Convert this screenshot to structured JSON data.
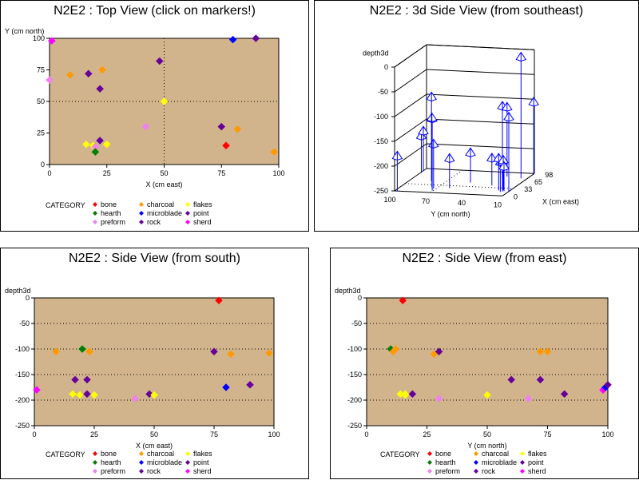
{
  "plot_bg": "#d2b48c",
  "legend": {
    "title": "CATEGORY",
    "items": [
      {
        "label": "bone",
        "color": "#ff0000"
      },
      {
        "label": "charcoal",
        "color": "#ff9900"
      },
      {
        "label": "flakes",
        "color": "#ffff00"
      },
      {
        "label": "hearth",
        "color": "#008000"
      },
      {
        "label": "microblade",
        "color": "#0000ff"
      },
      {
        "label": "point",
        "color": "#660099"
      },
      {
        "label": "preform",
        "color": "#ee82ee"
      },
      {
        "label": "rock",
        "color": "#660099"
      },
      {
        "label": "sherd",
        "color": "#ff00ff"
      }
    ]
  },
  "panels": {
    "top": {
      "title": "N2E2 : Top View (click on markers!)"
    },
    "side3d": {
      "title": "N2E2 : 3d Side View (from southeast)"
    },
    "south": {
      "title": "N2E2 : Side View (from south)"
    },
    "east": {
      "title": "N2E2 : Side View (from east)"
    }
  },
  "chart_data": [
    {
      "type": "scatter",
      "title": "N2E2 : Top View (click on markers!)",
      "xlabel": "X (cm east)",
      "ylabel": "Y (cm north)",
      "xlim": [
        0,
        100
      ],
      "ylim": [
        0,
        100
      ],
      "xticks": [
        0,
        25,
        50,
        75,
        100
      ],
      "yticks": [
        0,
        25,
        50,
        75,
        100
      ],
      "reflines": {
        "x": [
          50
        ],
        "y": [
          50
        ]
      },
      "points": [
        {
          "x": 1,
          "y": 98,
          "c": "sherd"
        },
        {
          "x": 0,
          "y": 67,
          "c": "preform"
        },
        {
          "x": 9,
          "y": 71,
          "c": "charcoal"
        },
        {
          "x": 17,
          "y": 72,
          "c": "rock"
        },
        {
          "x": 23,
          "y": 75,
          "c": "charcoal"
        },
        {
          "x": 22,
          "y": 60,
          "c": "point"
        },
        {
          "x": 48,
          "y": 82,
          "c": "rock"
        },
        {
          "x": 50,
          "y": 50,
          "c": "flakes"
        },
        {
          "x": 80,
          "y": 99,
          "c": "microblade"
        },
        {
          "x": 90,
          "y": 100,
          "c": "rock"
        },
        {
          "x": 42,
          "y": 30,
          "c": "preform"
        },
        {
          "x": 75,
          "y": 30,
          "c": "rock"
        },
        {
          "x": 82,
          "y": 28,
          "c": "charcoal"
        },
        {
          "x": 77,
          "y": 15,
          "c": "bone"
        },
        {
          "x": 98,
          "y": 10,
          "c": "charcoal"
        },
        {
          "x": 16,
          "y": 16,
          "c": "flakes"
        },
        {
          "x": 19,
          "y": 15,
          "c": "flakes"
        },
        {
          "x": 22,
          "y": 19,
          "c": "point"
        },
        {
          "x": 25,
          "y": 16,
          "c": "flakes"
        },
        {
          "x": 20,
          "y": 14,
          "c": "preform"
        },
        {
          "x": 20,
          "y": 10,
          "c": "hearth"
        }
      ]
    },
    {
      "type": "scatter",
      "title": "N2E2 : 3d Side View (from southeast)",
      "zlabel": "depth3d",
      "ylabel": "Y (cm north)",
      "xlabel": "X (cm east)",
      "zticks": [
        "0",
        "-50",
        "-100",
        "-150",
        "-200",
        "-250"
      ],
      "yticks": [
        "100",
        "70",
        "40",
        "10"
      ],
      "xticks": [
        "0",
        "33",
        "65",
        "98"
      ],
      "points": [
        {
          "x": 1,
          "y": 98,
          "z": -180
        },
        {
          "x": 17,
          "y": 72,
          "z": -160
        },
        {
          "x": 9,
          "y": 71,
          "z": -105
        },
        {
          "x": 23,
          "y": 75,
          "z": -110
        },
        {
          "x": 22,
          "y": 60,
          "z": -190
        },
        {
          "x": 42,
          "y": 30,
          "z": -195
        },
        {
          "x": 48,
          "y": 82,
          "z": -80
        },
        {
          "x": 50,
          "y": 50,
          "z": -190
        },
        {
          "x": 80,
          "y": 99,
          "z": -175
        },
        {
          "x": 90,
          "y": 100,
          "z": -170
        },
        {
          "x": 75,
          "y": 30,
          "z": -105
        },
        {
          "x": 82,
          "y": 28,
          "z": -110
        },
        {
          "x": 77,
          "y": 15,
          "z": -5
        },
        {
          "x": 98,
          "y": 10,
          "z": -105
        },
        {
          "x": 16,
          "y": 16,
          "z": -190
        },
        {
          "x": 19,
          "y": 15,
          "z": -190
        },
        {
          "x": 22,
          "y": 19,
          "z": -185
        },
        {
          "x": 25,
          "y": 16,
          "z": -190
        },
        {
          "x": 20,
          "y": 14,
          "z": -200
        },
        {
          "x": 20,
          "y": 10,
          "z": -100
        }
      ]
    },
    {
      "type": "scatter",
      "title": "N2E2 : Side View (from south)",
      "xlabel": "X (cm east)",
      "ylabel": "depth3d",
      "xlim": [
        0,
        100
      ],
      "ylim": [
        -250,
        0
      ],
      "xticks": [
        0,
        25,
        50,
        75,
        100
      ],
      "yticks": [
        0,
        -50,
        -100,
        -150,
        -200,
        -250
      ],
      "points": [
        {
          "x": 77,
          "y": -5,
          "c": "bone"
        },
        {
          "x": 20,
          "y": -100,
          "c": "hearth"
        },
        {
          "x": 9,
          "y": -105,
          "c": "charcoal"
        },
        {
          "x": 23,
          "y": -105,
          "c": "charcoal"
        },
        {
          "x": 82,
          "y": -110,
          "c": "charcoal"
        },
        {
          "x": 98,
          "y": -108,
          "c": "charcoal"
        },
        {
          "x": 75,
          "y": -105,
          "c": "rock"
        },
        {
          "x": 17,
          "y": -160,
          "c": "point"
        },
        {
          "x": 22,
          "y": -160,
          "c": "rock"
        },
        {
          "x": 1,
          "y": -180,
          "c": "sherd"
        },
        {
          "x": 16,
          "y": -188,
          "c": "flakes"
        },
        {
          "x": 19,
          "y": -190,
          "c": "flakes"
        },
        {
          "x": 22,
          "y": -188,
          "c": "point"
        },
        {
          "x": 25,
          "y": -190,
          "c": "flakes"
        },
        {
          "x": 42,
          "y": -197,
          "c": "preform"
        },
        {
          "x": 48,
          "y": -188,
          "c": "rock"
        },
        {
          "x": 50,
          "y": -190,
          "c": "flakes"
        },
        {
          "x": 80,
          "y": -175,
          "c": "microblade"
        },
        {
          "x": 90,
          "y": -170,
          "c": "rock"
        }
      ]
    },
    {
      "type": "scatter",
      "title": "N2E2 : Side View (from east)",
      "xlabel": "Y (cm north)",
      "ylabel": "depth3d",
      "xlim": [
        0,
        100
      ],
      "ylim": [
        -250,
        0
      ],
      "xticks": [
        0,
        25,
        50,
        75,
        100
      ],
      "yticks": [
        0,
        -50,
        -100,
        -150,
        -200,
        -250
      ],
      "points": [
        {
          "x": 15,
          "y": -5,
          "c": "bone"
        },
        {
          "x": 10,
          "y": -100,
          "c": "hearth"
        },
        {
          "x": 12,
          "y": -100,
          "c": "charcoal"
        },
        {
          "x": 11,
          "y": -105,
          "c": "charcoal"
        },
        {
          "x": 28,
          "y": -110,
          "c": "charcoal"
        },
        {
          "x": 30,
          "y": -105,
          "c": "rock"
        },
        {
          "x": 72,
          "y": -105,
          "c": "charcoal"
        },
        {
          "x": 75,
          "y": -105,
          "c": "charcoal"
        },
        {
          "x": 60,
          "y": -160,
          "c": "point"
        },
        {
          "x": 72,
          "y": -160,
          "c": "rock"
        },
        {
          "x": 14,
          "y": -188,
          "c": "flakes"
        },
        {
          "x": 16,
          "y": -188,
          "c": "flakes"
        },
        {
          "x": 19,
          "y": -188,
          "c": "point"
        },
        {
          "x": 16,
          "y": -190,
          "c": "flakes"
        },
        {
          "x": 30,
          "y": -197,
          "c": "preform"
        },
        {
          "x": 50,
          "y": -190,
          "c": "flakes"
        },
        {
          "x": 67,
          "y": -197,
          "c": "preform"
        },
        {
          "x": 82,
          "y": -188,
          "c": "rock"
        },
        {
          "x": 98,
          "y": -180,
          "c": "sherd"
        },
        {
          "x": 99,
          "y": -175,
          "c": "microblade"
        },
        {
          "x": 100,
          "y": -170,
          "c": "rock"
        }
      ]
    }
  ]
}
